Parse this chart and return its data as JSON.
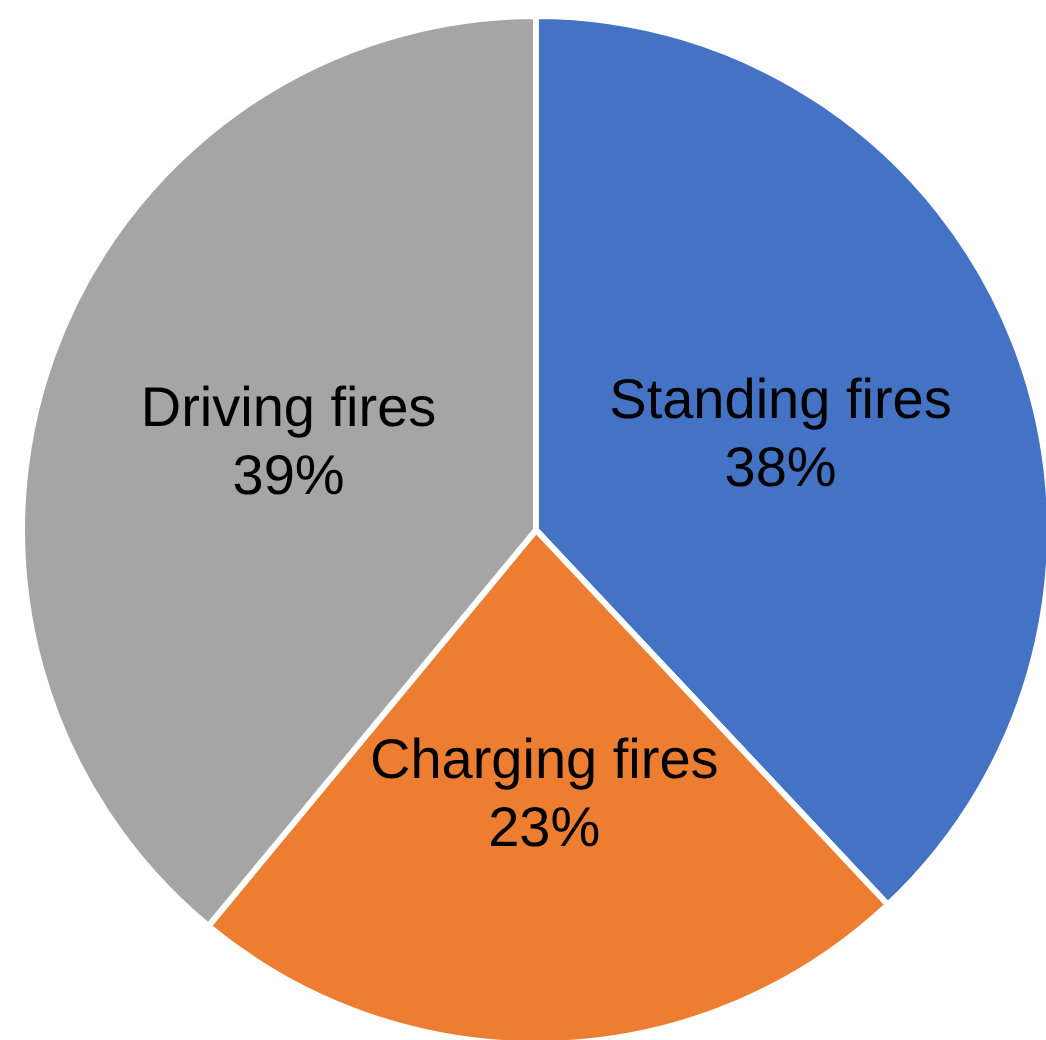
{
  "chart_data": {
    "type": "pie",
    "categories": [
      "Standing fires",
      "Charging fires",
      "Driving fires"
    ],
    "values": [
      38,
      23,
      39
    ],
    "colors": [
      "#4472c4",
      "#ed7d31",
      "#a5a5a5"
    ],
    "value_labels": [
      "38%",
      "23%",
      "39%"
    ]
  }
}
